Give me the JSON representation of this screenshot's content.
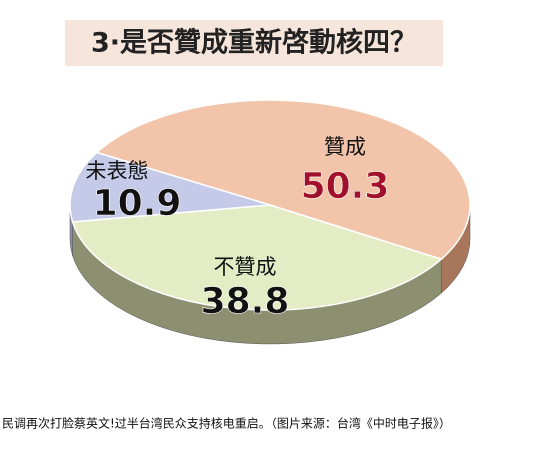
{
  "chart_data": {
    "type": "pie3d",
    "title": "3·是否贊成重新啓動核四？",
    "categories": [
      "贊成",
      "不贊成",
      "未表態"
    ],
    "values": [
      50.3,
      38.8,
      10.9
    ],
    "colors": [
      "#f2c5ab",
      "#e4ecc6",
      "#c5cae9"
    ],
    "side_colors": [
      "#a8765a",
      "#8c9070",
      "#8a8ea8"
    ],
    "caption": "民调再次打脸蔡英文!过半台湾民众支持核电重启。（图片来源：台湾《中时电子报》）"
  }
}
